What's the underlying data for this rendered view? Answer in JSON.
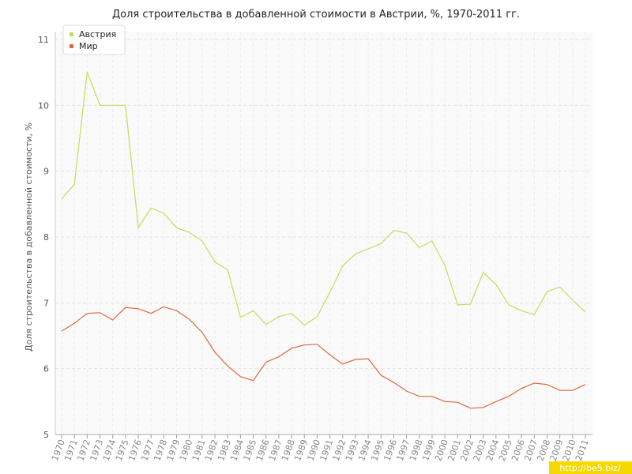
{
  "chart_data": {
    "type": "line",
    "title": "Доля строительства в добавленной стоимости в Австрии, %, 1970-2011 гг.",
    "y_label": "Доля строительства в добавленной стоимости, %",
    "watermark": "http://be5.biz/",
    "categories": [
      "1970",
      "1971",
      "1972",
      "1973",
      "1974",
      "1975",
      "1976",
      "1977",
      "1978",
      "1979",
      "1980",
      "1981",
      "1982",
      "1983",
      "1984",
      "1985",
      "1986",
      "1987",
      "1988",
      "1989",
      "1990",
      "1991",
      "1992",
      "1993",
      "1994",
      "1995",
      "1996",
      "1997",
      "1998",
      "1999",
      "2000",
      "2001",
      "2002",
      "2003",
      "2004",
      "2005",
      "2006",
      "2007",
      "2008",
      "2009",
      "2010",
      "2011"
    ],
    "series": [
      {
        "name": "Австрия",
        "color": "#c5dc5a",
        "values": [
          8.58,
          8.8,
          10.51,
          10.0,
          10.0,
          10.0,
          8.14,
          8.44,
          8.36,
          8.14,
          8.07,
          7.94,
          7.62,
          7.5,
          6.78,
          6.88,
          6.67,
          6.79,
          6.84,
          6.66,
          6.79,
          7.16,
          7.56,
          7.74,
          7.82,
          7.9,
          8.1,
          8.06,
          7.84,
          7.94,
          7.57,
          6.97,
          6.98,
          7.46,
          7.28,
          6.97,
          6.88,
          6.82,
          7.17,
          7.24,
          7.04,
          6.86
        ]
      },
      {
        "name": "Мир",
        "color": "#e0663e",
        "values": [
          6.57,
          6.69,
          6.84,
          6.85,
          6.74,
          6.93,
          6.91,
          6.84,
          6.94,
          6.88,
          6.75,
          6.55,
          6.25,
          6.04,
          5.88,
          5.82,
          6.1,
          6.18,
          6.31,
          6.36,
          6.37,
          6.21,
          6.07,
          6.14,
          6.15,
          5.9,
          5.79,
          5.66,
          5.58,
          5.58,
          5.5,
          5.49,
          5.4,
          5.41,
          5.5,
          5.58,
          5.7,
          5.78,
          5.76,
          5.67,
          5.67,
          5.76
        ]
      }
    ],
    "ylim": [
      5,
      11
    ],
    "yticks": [
      5,
      6,
      7,
      8,
      9,
      10,
      11
    ],
    "grid": true,
    "legend": "top-left"
  }
}
